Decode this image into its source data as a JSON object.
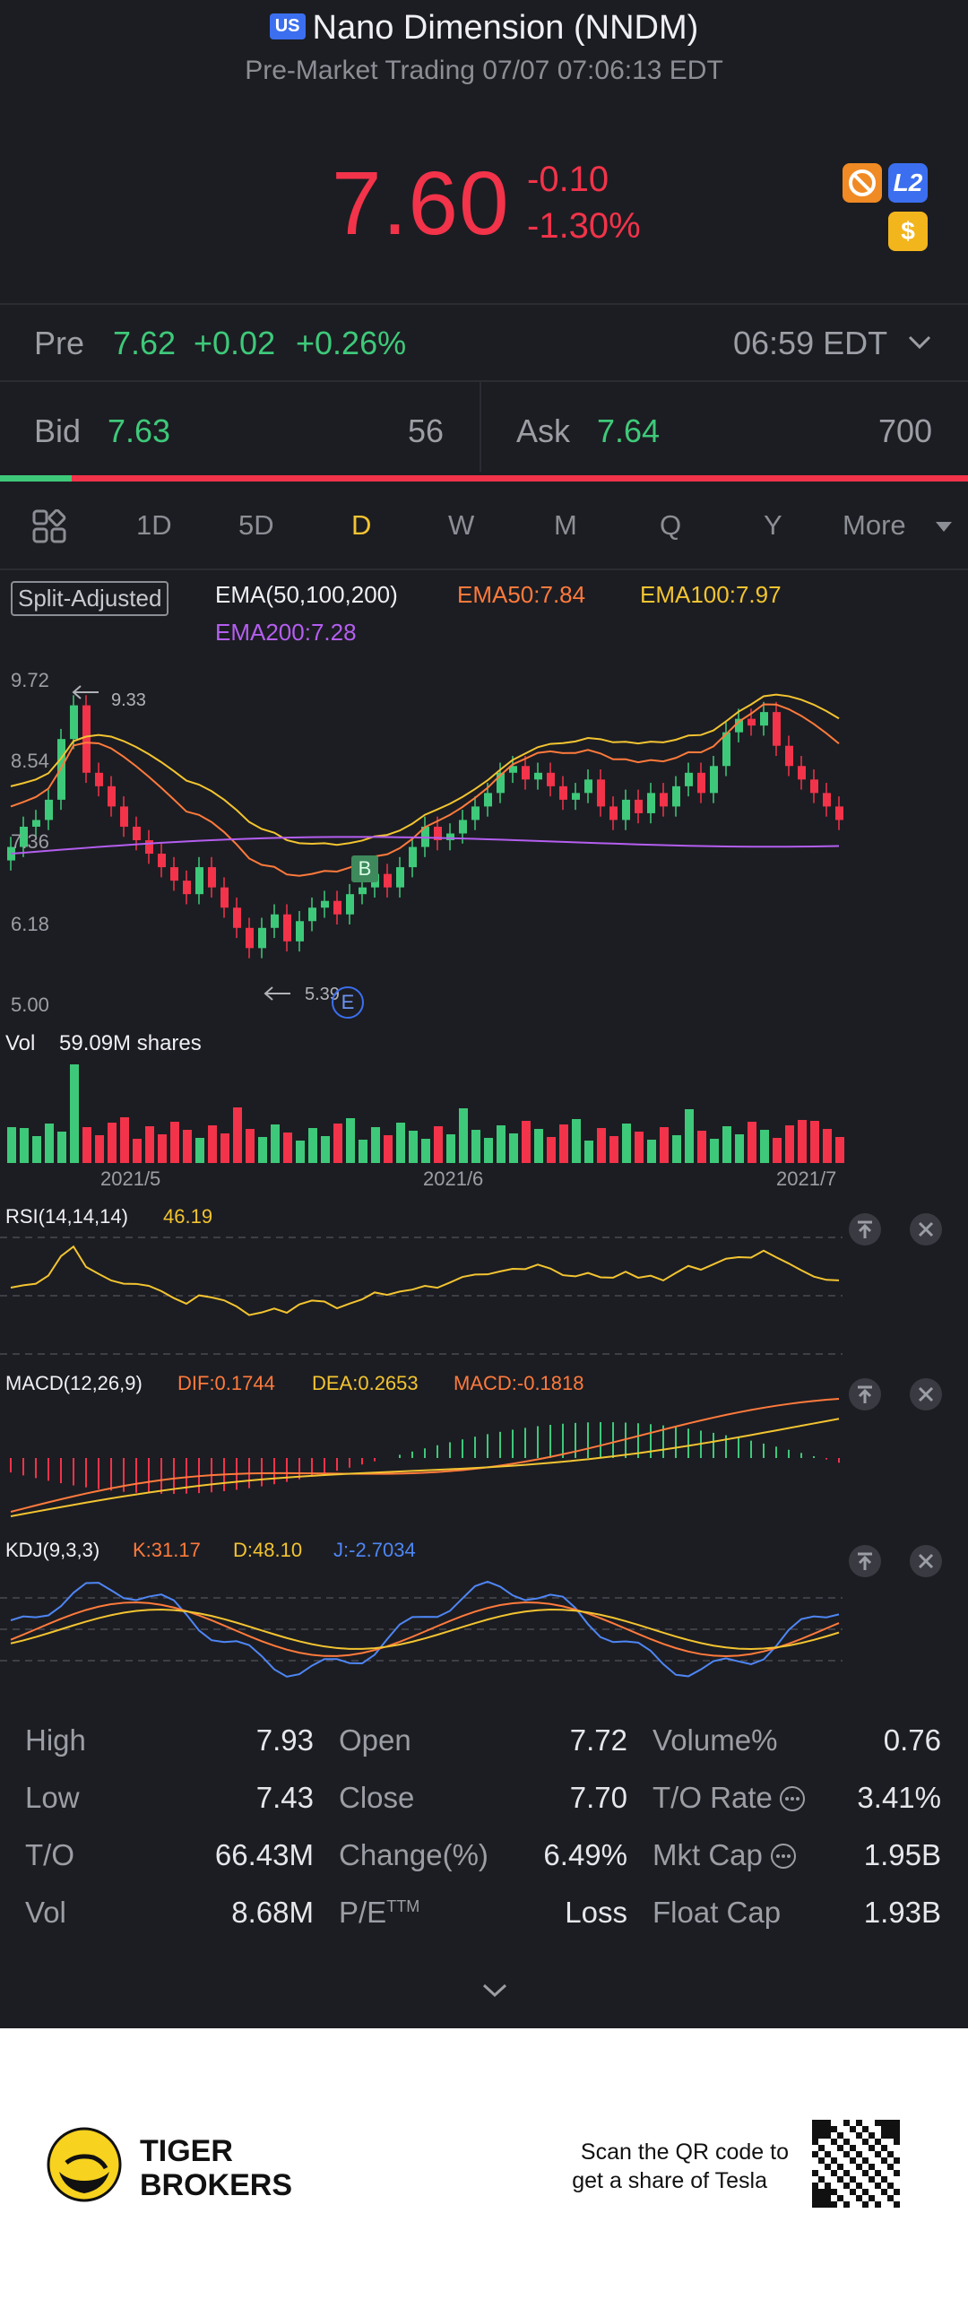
{
  "header": {
    "market_badge": "US",
    "title": "Nano Dimension (NNDM)",
    "subtitle": "Pre-Market Trading 07/07 07:06:13 EDT",
    "price": "7.60",
    "change": "-0.10",
    "change_pct": "-1.30%",
    "icons": [
      "no-entry-icon",
      "level2-icon",
      "dollar-icon"
    ],
    "level2_label": "L2",
    "dollar_label": "$"
  },
  "pre": {
    "label": "Pre",
    "price": "7.62",
    "change": "+0.02",
    "change_pct": "+0.26%",
    "time": "06:59 EDT"
  },
  "quote": {
    "bid_label": "Bid",
    "bid": "7.63",
    "bid_size": "56",
    "ask_label": "Ask",
    "ask": "7.64",
    "ask_size": "700",
    "bid_ratio": 0.074
  },
  "tabs": [
    "1D",
    "5D",
    "D",
    "W",
    "M",
    "Q",
    "Y",
    "More"
  ],
  "active_tab": "D",
  "ema": {
    "badge": "Split-Adjusted",
    "label": "EMA(50,100,200)",
    "ema50": "EMA50:7.84",
    "ema100": "EMA100:7.97",
    "ema200": "EMA200:7.28"
  },
  "price_axis": [
    "9.72",
    "8.54",
    "7.36",
    "6.18",
    "5.00"
  ],
  "annotations": {
    "high": "9.33",
    "low": "5.39",
    "buy_marker": "B",
    "event_marker": "E"
  },
  "volume": {
    "label": "Vol",
    "value": "59.09M shares"
  },
  "date_axis": [
    "2021/5",
    "2021/6",
    "2021/7"
  ],
  "rsi": {
    "label": "RSI(14,14,14)",
    "value": "46.19"
  },
  "macd": {
    "label": "MACD(12,26,9)",
    "dif": "DIF:0.1744",
    "dea": "DEA:0.2653",
    "macd": "MACD:-0.1818"
  },
  "kdj": {
    "label": "KDJ(9,3,3)",
    "k": "K:31.17",
    "d": "D:48.10",
    "j": "J:-2.7034"
  },
  "stats": [
    [
      {
        "label": "High",
        "value": "7.93"
      },
      {
        "label": "Open",
        "value": "7.72"
      },
      {
        "label": "Volume%",
        "value": "0.76"
      }
    ],
    [
      {
        "label": "Low",
        "value": "7.43"
      },
      {
        "label": "Close",
        "value": "7.70"
      },
      {
        "label": "T/O Rate",
        "value": "3.41%"
      }
    ],
    [
      {
        "label": "T/O",
        "value": "66.43M"
      },
      {
        "label": "Change(%)",
        "value": "6.49%"
      },
      {
        "label": "Mkt Cap",
        "value": "1.95B"
      }
    ],
    [
      {
        "label": "Vol",
        "value": "8.68M"
      },
      {
        "label": "P/E",
        "value": "Loss"
      },
      {
        "label": "Float Cap",
        "value": "1.93B"
      }
    ]
  ],
  "pe_superscript": "TTM",
  "footer": {
    "brand_line1": "TIGER",
    "brand_line2": "BROKERS",
    "cta_line1": "Scan the QR code to",
    "cta_line2": "get a share of Tesla"
  },
  "colors": {
    "bg": "#1c1d22",
    "up": "#3ec97a",
    "down": "#f2334a",
    "ema50": "#ff7a3c",
    "ema100": "#f3c431",
    "ema200": "#b45ef0",
    "accent_tab": "#f3c431"
  }
}
